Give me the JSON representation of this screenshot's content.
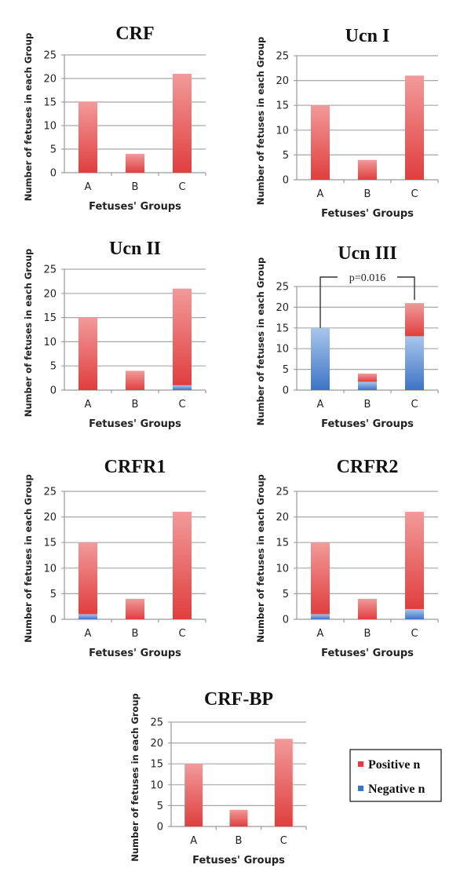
{
  "colors": {
    "positive": "#e03e3e",
    "positive_light": "#f29a9a",
    "negative": "#3d74c6",
    "negative_light": "#a9c6ec"
  },
  "legend": {
    "items": [
      {
        "key": "positive",
        "label": "Positive n"
      },
      {
        "key": "negative",
        "label": "Negative n"
      }
    ],
    "placement": "right of bottom chart"
  },
  "chart_data": [
    {
      "type": "bar",
      "stacked": true,
      "title": "CRF",
      "xlabel": "Fetuses' Groups",
      "ylabel": "Number of fetuses in each Group",
      "categories": [
        "A",
        "B",
        "C"
      ],
      "ylim": [
        0,
        25
      ],
      "yticks": [
        0,
        5,
        10,
        15,
        20,
        25
      ],
      "grid": true,
      "series": [
        {
          "name": "Negative n",
          "values": [
            0,
            0,
            0
          ]
        },
        {
          "name": "Positive n",
          "values": [
            15,
            4,
            21
          ]
        }
      ]
    },
    {
      "type": "bar",
      "stacked": true,
      "title": "Ucn I",
      "xlabel": "Fetuses' Groups",
      "ylabel": "Number of fetuses in each Group",
      "categories": [
        "A",
        "B",
        "C"
      ],
      "ylim": [
        0,
        25
      ],
      "yticks": [
        0,
        5,
        10,
        15,
        20,
        25
      ],
      "grid": true,
      "series": [
        {
          "name": "Negative n",
          "values": [
            0,
            0,
            0
          ]
        },
        {
          "name": "Positive n",
          "values": [
            15,
            4,
            21
          ]
        }
      ]
    },
    {
      "type": "bar",
      "stacked": true,
      "title": "Ucn II",
      "xlabel": "Fetuses' Groups",
      "ylabel": "Number of fetuses in each Group",
      "categories": [
        "A",
        "B",
        "C"
      ],
      "ylim": [
        0,
        25
      ],
      "yticks": [
        0,
        5,
        10,
        15,
        20,
        25
      ],
      "grid": true,
      "series": [
        {
          "name": "Negative n",
          "values": [
            0,
            0,
            1
          ]
        },
        {
          "name": "Positive n",
          "values": [
            15,
            4,
            20
          ]
        }
      ]
    },
    {
      "type": "bar",
      "stacked": true,
      "title": "Ucn III",
      "xlabel": "Fetuses' Groups",
      "ylabel": "Number of fetuses in each Group",
      "categories": [
        "A",
        "B",
        "C"
      ],
      "ylim": [
        0,
        25
      ],
      "yticks": [
        0,
        5,
        10,
        15,
        20,
        25
      ],
      "grid": true,
      "annotation": {
        "text": "p=0.016",
        "from": "A",
        "to": "C"
      },
      "series": [
        {
          "name": "Negative n",
          "values": [
            15,
            2,
            13
          ]
        },
        {
          "name": "Positive n",
          "values": [
            0,
            2,
            8
          ]
        }
      ]
    },
    {
      "type": "bar",
      "stacked": true,
      "title": "CRFR1",
      "xlabel": "Fetuses' Groups",
      "ylabel": "Number of fetuses in each Group",
      "categories": [
        "A",
        "B",
        "C"
      ],
      "ylim": [
        0,
        25
      ],
      "yticks": [
        0,
        5,
        10,
        15,
        20,
        25
      ],
      "grid": true,
      "series": [
        {
          "name": "Negative n",
          "values": [
            1,
            0,
            0
          ]
        },
        {
          "name": "Positive n",
          "values": [
            14,
            4,
            21
          ]
        }
      ]
    },
    {
      "type": "bar",
      "stacked": true,
      "title": "CRFR2",
      "xlabel": "Fetuses' Groups",
      "ylabel": "Number of fetuses in each Group",
      "categories": [
        "A",
        "B",
        "C"
      ],
      "ylim": [
        0,
        25
      ],
      "yticks": [
        0,
        5,
        10,
        15,
        20,
        25
      ],
      "grid": true,
      "series": [
        {
          "name": "Negative n",
          "values": [
            1,
            0,
            2
          ]
        },
        {
          "name": "Positive n",
          "values": [
            14,
            4,
            19
          ]
        }
      ]
    },
    {
      "type": "bar",
      "stacked": true,
      "title": "CRF-BP",
      "xlabel": "Fetuses' Groups",
      "ylabel": "Number of fetuses in each Group",
      "categories": [
        "A",
        "B",
        "C"
      ],
      "ylim": [
        0,
        25
      ],
      "yticks": [
        0,
        5,
        10,
        15,
        20,
        25
      ],
      "grid": true,
      "series": [
        {
          "name": "Negative n",
          "values": [
            0,
            0,
            0
          ]
        },
        {
          "name": "Positive n",
          "values": [
            15,
            4,
            21
          ]
        }
      ]
    }
  ]
}
